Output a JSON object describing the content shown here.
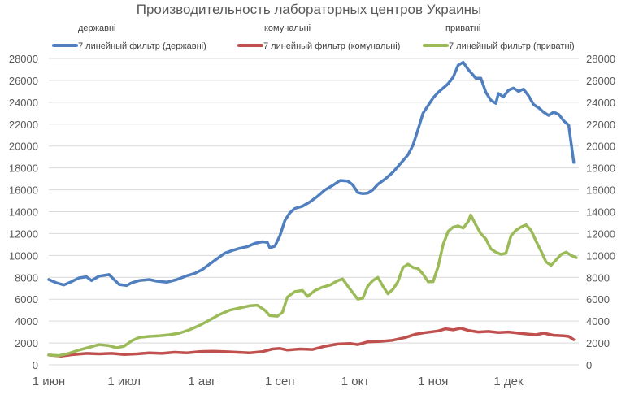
{
  "chart_data": {
    "type": "line",
    "title": "Производительность лабораторных центров Украины",
    "xlabel": "",
    "ylabel": "",
    "ylim": [
      0,
      28000
    ],
    "yticks": [
      "0",
      "2000",
      "4000",
      "6000",
      "8000",
      "10000",
      "12000",
      "14000",
      "16000",
      "18000",
      "20000",
      "22000",
      "24000",
      "26000",
      "28000"
    ],
    "x_tick_labels": [
      "1 июн",
      "1 июл",
      "1 авг",
      "1 сеп",
      "1 окт",
      "1 ноя",
      "1 дек"
    ],
    "x_tick_days": [
      0,
      30,
      61,
      92,
      122,
      153,
      183
    ],
    "x_range_days": [
      0,
      211
    ],
    "grid": true,
    "secondary_axis": true,
    "legend_placement": "top",
    "legend_headers": [
      "державні",
      "комунальні",
      "приватні"
    ],
    "series": [
      {
        "name": "7 линейный фильтр (державні)",
        "color": "#4f7fbe",
        "points": [
          [
            0,
            7800
          ],
          [
            3,
            7500
          ],
          [
            6,
            7300
          ],
          [
            9,
            7600
          ],
          [
            12,
            7950
          ],
          [
            15,
            8050
          ],
          [
            17,
            7700
          ],
          [
            20,
            8100
          ],
          [
            24,
            8250
          ],
          [
            26,
            7800
          ],
          [
            28,
            7350
          ],
          [
            31,
            7250
          ],
          [
            33,
            7500
          ],
          [
            36,
            7700
          ],
          [
            40,
            7800
          ],
          [
            43,
            7650
          ],
          [
            47,
            7550
          ],
          [
            51,
            7800
          ],
          [
            55,
            8150
          ],
          [
            58,
            8350
          ],
          [
            61,
            8700
          ],
          [
            64,
            9200
          ],
          [
            67,
            9700
          ],
          [
            70,
            10200
          ],
          [
            73,
            10450
          ],
          [
            76,
            10650
          ],
          [
            79,
            10800
          ],
          [
            82,
            11100
          ],
          [
            85,
            11250
          ],
          [
            87,
            11200
          ],
          [
            88,
            10700
          ],
          [
            90,
            10850
          ],
          [
            92,
            11800
          ],
          [
            94,
            13200
          ],
          [
            96,
            13900
          ],
          [
            98,
            14300
          ],
          [
            101,
            14500
          ],
          [
            104,
            14900
          ],
          [
            107,
            15400
          ],
          [
            110,
            16000
          ],
          [
            113,
            16400
          ],
          [
            116,
            16850
          ],
          [
            119,
            16800
          ],
          [
            121,
            16450
          ],
          [
            123,
            15750
          ],
          [
            125,
            15650
          ],
          [
            127,
            15700
          ],
          [
            129,
            16000
          ],
          [
            131,
            16500
          ],
          [
            134,
            17000
          ],
          [
            137,
            17600
          ],
          [
            140,
            18400
          ],
          [
            143,
            19200
          ],
          [
            145,
            20100
          ],
          [
            147,
            21500
          ],
          [
            149,
            23000
          ],
          [
            151,
            23700
          ],
          [
            153,
            24400
          ],
          [
            155,
            24900
          ],
          [
            157,
            25300
          ],
          [
            159,
            25700
          ],
          [
            161,
            26300
          ],
          [
            163,
            27400
          ],
          [
            165,
            27650
          ],
          [
            167,
            27000
          ],
          [
            170,
            26200
          ],
          [
            172,
            26200
          ],
          [
            174,
            24900
          ],
          [
            176,
            24200
          ],
          [
            178,
            23900
          ],
          [
            179,
            24800
          ],
          [
            181,
            24500
          ],
          [
            183,
            25100
          ],
          [
            185,
            25300
          ],
          [
            187,
            25000
          ],
          [
            189,
            25200
          ],
          [
            191,
            24600
          ],
          [
            193,
            23800
          ],
          [
            195,
            23500
          ],
          [
            197,
            23100
          ],
          [
            199,
            22800
          ],
          [
            201,
            23100
          ],
          [
            203,
            22900
          ],
          [
            205,
            22300
          ],
          [
            207,
            21900
          ],
          [
            209,
            18500
          ]
        ]
      },
      {
        "name": "7 линейный фильтр (комунальні)",
        "color": "#c0504d",
        "points": [
          [
            0,
            900
          ],
          [
            5,
            800
          ],
          [
            10,
            950
          ],
          [
            15,
            1050
          ],
          [
            20,
            1000
          ],
          [
            25,
            1050
          ],
          [
            30,
            950
          ],
          [
            35,
            1000
          ],
          [
            40,
            1100
          ],
          [
            45,
            1050
          ],
          [
            50,
            1150
          ],
          [
            55,
            1100
          ],
          [
            60,
            1200
          ],
          [
            65,
            1250
          ],
          [
            70,
            1200
          ],
          [
            75,
            1150
          ],
          [
            80,
            1100
          ],
          [
            85,
            1200
          ],
          [
            89,
            1450
          ],
          [
            92,
            1500
          ],
          [
            95,
            1350
          ],
          [
            100,
            1450
          ],
          [
            105,
            1400
          ],
          [
            110,
            1700
          ],
          [
            115,
            1900
          ],
          [
            120,
            1950
          ],
          [
            123,
            1850
          ],
          [
            127,
            2100
          ],
          [
            132,
            2150
          ],
          [
            137,
            2250
          ],
          [
            142,
            2500
          ],
          [
            146,
            2800
          ],
          [
            150,
            2950
          ],
          [
            155,
            3100
          ],
          [
            158,
            3300
          ],
          [
            161,
            3200
          ],
          [
            164,
            3350
          ],
          [
            167,
            3150
          ],
          [
            171,
            3000
          ],
          [
            175,
            3050
          ],
          [
            179,
            2950
          ],
          [
            183,
            3000
          ],
          [
            187,
            2900
          ],
          [
            191,
            2800
          ],
          [
            194,
            2750
          ],
          [
            197,
            2900
          ],
          [
            201,
            2700
          ],
          [
            205,
            2650
          ],
          [
            207,
            2600
          ],
          [
            209,
            2300
          ]
        ]
      },
      {
        "name": "7 линейный фильтр (приватні)",
        "color": "#9bbb59",
        "points": [
          [
            0,
            900
          ],
          [
            4,
            850
          ],
          [
            8,
            1050
          ],
          [
            12,
            1350
          ],
          [
            16,
            1600
          ],
          [
            20,
            1850
          ],
          [
            24,
            1750
          ],
          [
            27,
            1550
          ],
          [
            30,
            1700
          ],
          [
            33,
            2200
          ],
          [
            36,
            2500
          ],
          [
            40,
            2600
          ],
          [
            44,
            2650
          ],
          [
            48,
            2750
          ],
          [
            52,
            2900
          ],
          [
            56,
            3200
          ],
          [
            60,
            3600
          ],
          [
            64,
            4100
          ],
          [
            68,
            4600
          ],
          [
            72,
            5000
          ],
          [
            76,
            5200
          ],
          [
            80,
            5400
          ],
          [
            83,
            5450
          ],
          [
            86,
            5000
          ],
          [
            88,
            4500
          ],
          [
            91,
            4450
          ],
          [
            93,
            4800
          ],
          [
            95,
            6200
          ],
          [
            98,
            6700
          ],
          [
            101,
            6800
          ],
          [
            103,
            6250
          ],
          [
            106,
            6800
          ],
          [
            109,
            7100
          ],
          [
            112,
            7300
          ],
          [
            115,
            7700
          ],
          [
            117,
            7850
          ],
          [
            120,
            6900
          ],
          [
            123,
            6000
          ],
          [
            125,
            6100
          ],
          [
            127,
            7200
          ],
          [
            129,
            7700
          ],
          [
            131,
            8000
          ],
          [
            133,
            7200
          ],
          [
            135,
            6500
          ],
          [
            137,
            6900
          ],
          [
            139,
            7600
          ],
          [
            141,
            8900
          ],
          [
            143,
            9200
          ],
          [
            145,
            8900
          ],
          [
            147,
            8800
          ],
          [
            149,
            8300
          ],
          [
            151,
            7600
          ],
          [
            153,
            7600
          ],
          [
            155,
            9000
          ],
          [
            157,
            11000
          ],
          [
            159,
            12200
          ],
          [
            161,
            12600
          ],
          [
            163,
            12700
          ],
          [
            165,
            12500
          ],
          [
            167,
            13100
          ],
          [
            168,
            13700
          ],
          [
            170,
            12800
          ],
          [
            172,
            12000
          ],
          [
            174,
            11500
          ],
          [
            176,
            10600
          ],
          [
            178,
            10300
          ],
          [
            180,
            10100
          ],
          [
            182,
            10200
          ],
          [
            184,
            11800
          ],
          [
            186,
            12300
          ],
          [
            188,
            12600
          ],
          [
            190,
            12800
          ],
          [
            192,
            12300
          ],
          [
            194,
            11300
          ],
          [
            196,
            10400
          ],
          [
            198,
            9400
          ],
          [
            200,
            9100
          ],
          [
            202,
            9600
          ],
          [
            204,
            10100
          ],
          [
            206,
            10300
          ],
          [
            208,
            10000
          ],
          [
            210,
            9800
          ]
        ]
      }
    ]
  }
}
